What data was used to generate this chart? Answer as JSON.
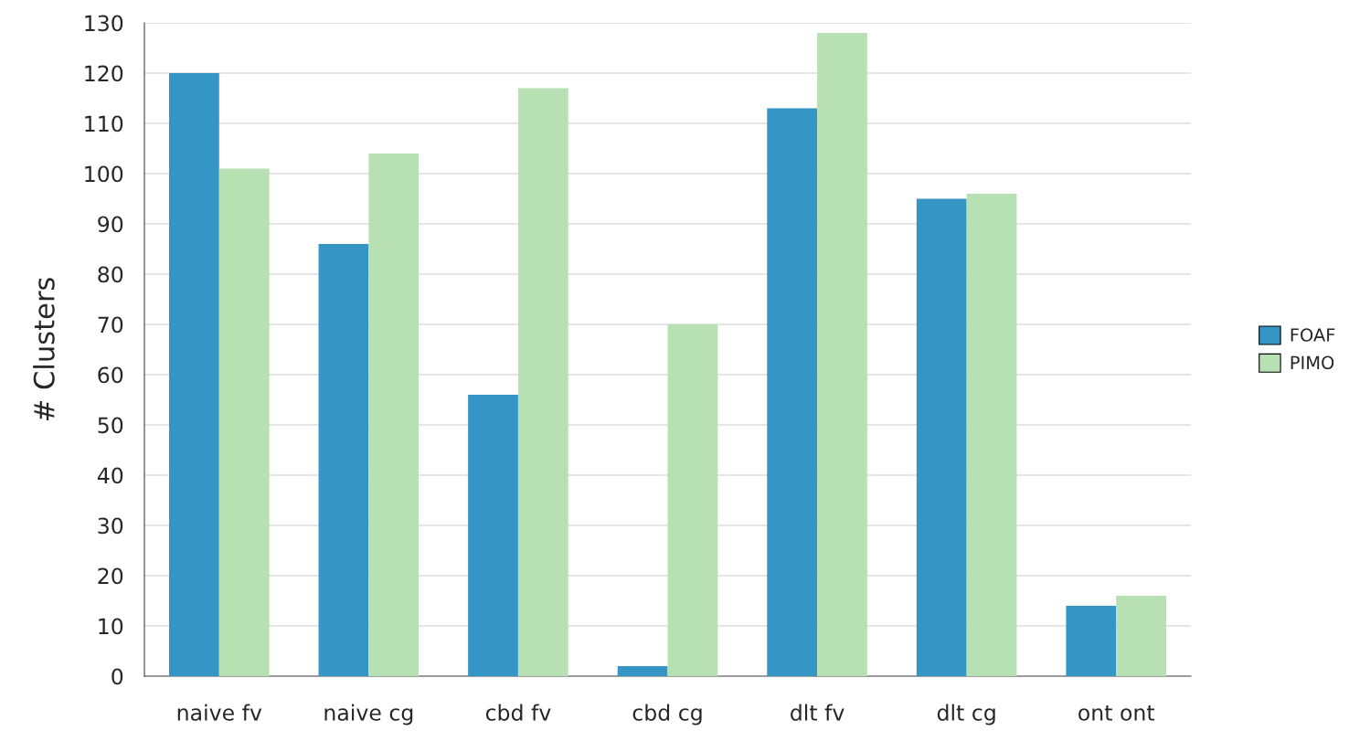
{
  "chart_data": {
    "type": "bar",
    "ylabel": "# Clusters",
    "categories": [
      "naive fv",
      "naive cg",
      "cbd fv",
      "cbd cg",
      "dlt fv",
      "dlt cg",
      "ont ont"
    ],
    "series": [
      {
        "name": "FOAF",
        "color": "#3596c6",
        "values": [
          120,
          86,
          56,
          2,
          113,
          95,
          14
        ]
      },
      {
        "name": "PIMO",
        "color": "#b8e1b3",
        "values": [
          101,
          104,
          117,
          70,
          128,
          96,
          16
        ]
      }
    ],
    "ylim": [
      0,
      130
    ],
    "yticks": [
      0,
      10,
      20,
      30,
      40,
      50,
      60,
      70,
      80,
      90,
      100,
      110,
      120,
      130
    ],
    "grid": "y",
    "legend": "right"
  }
}
